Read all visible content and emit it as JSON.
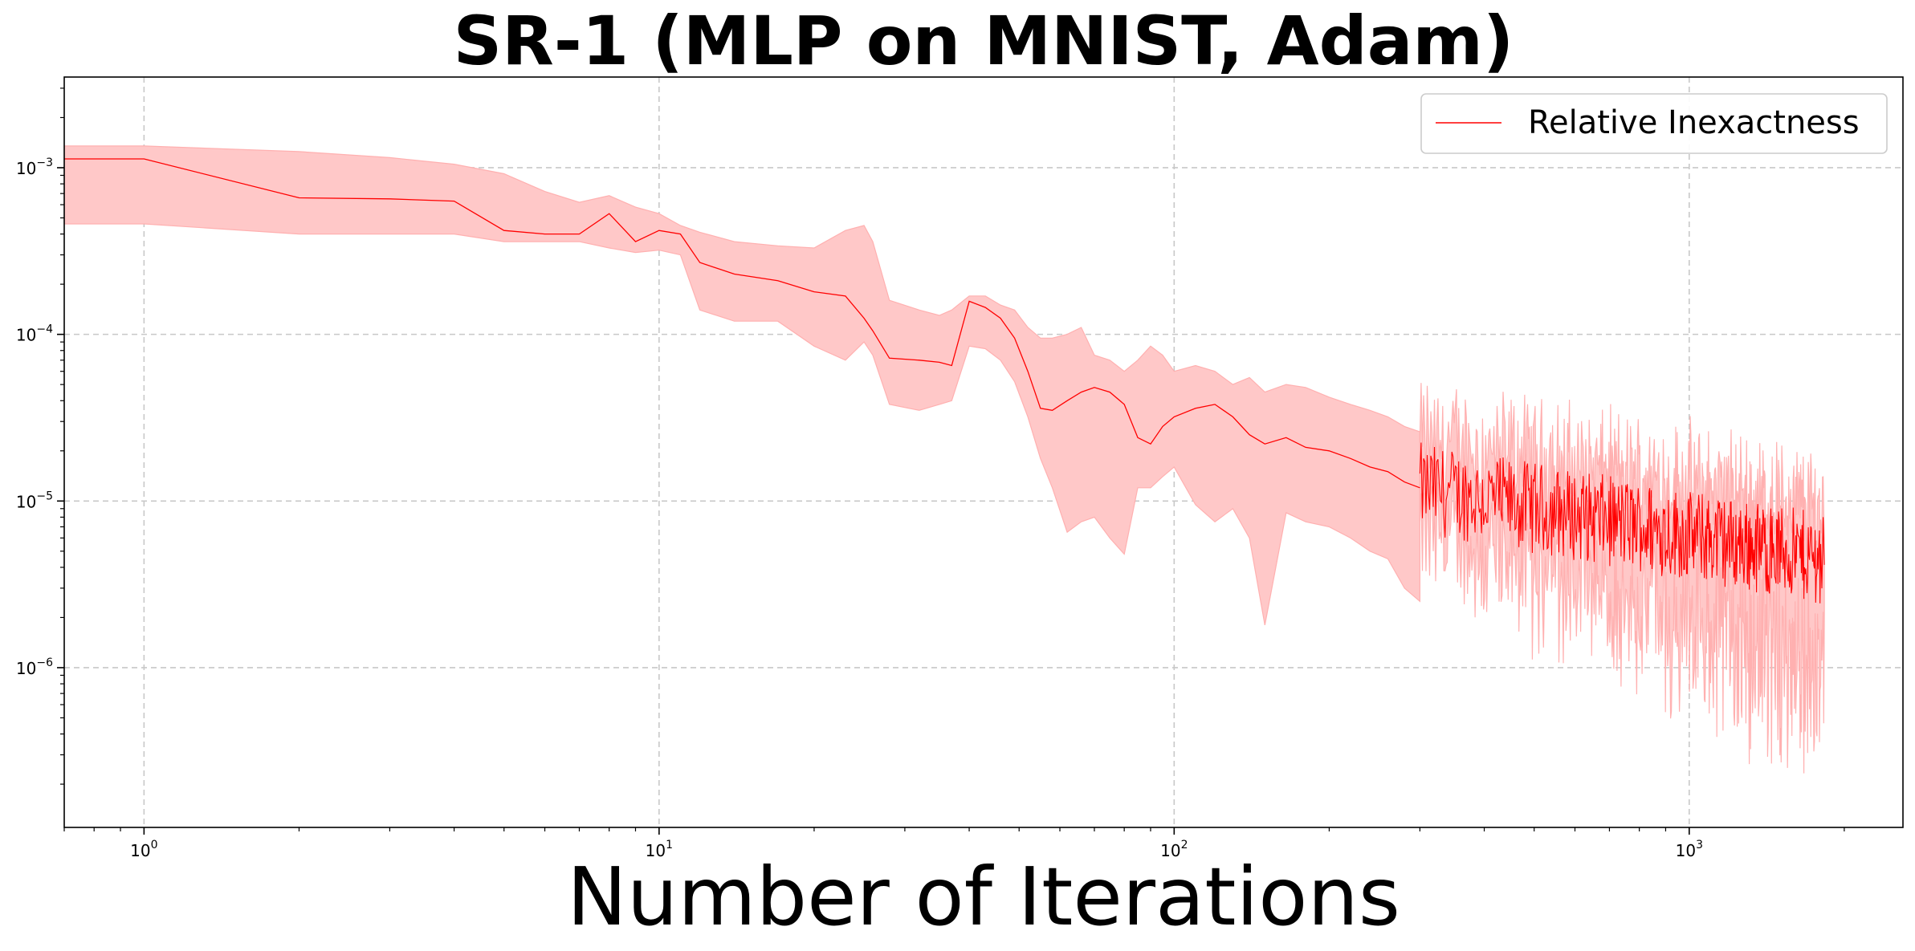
{
  "chart_data": {
    "type": "line",
    "title": "SR-1 (MLP on MNIST, Adam)",
    "xlabel": "Number of Iterations",
    "ylabel": "",
    "x_scale": "log",
    "y_scale": "log",
    "xlim": [
      0.7,
      2600
    ],
    "ylim": [
      1.1e-07,
      0.0035
    ],
    "grid": true,
    "legend_position": "top-right",
    "x_major_ticks": [
      {
        "value": 1,
        "base": "10",
        "exp": "0"
      },
      {
        "value": 10,
        "base": "10",
        "exp": "1"
      },
      {
        "value": 100,
        "base": "10",
        "exp": "2"
      },
      {
        "value": 1000,
        "base": "10",
        "exp": "3"
      }
    ],
    "y_major_ticks": [
      {
        "value": 0.001,
        "base": "10",
        "exp": "−3"
      },
      {
        "value": 0.0001,
        "base": "10",
        "exp": "−4"
      },
      {
        "value": 1e-05,
        "base": "10",
        "exp": "−5"
      },
      {
        "value": 1e-06,
        "base": "10",
        "exp": "−6"
      }
    ],
    "series": [
      {
        "name": "Relative Inexactness",
        "color": "#ff0000",
        "band_color": "#ffc8c8",
        "band_edge_color": "#ffb0b0",
        "x": [
          0.7,
          1,
          2,
          3,
          4,
          5,
          6,
          7,
          8,
          9,
          10,
          11,
          12,
          14,
          17,
          20,
          23,
          25,
          26,
          28,
          32,
          35,
          37,
          40,
          43,
          46,
          49,
          52,
          55,
          58,
          62,
          66,
          70,
          75,
          80,
          85,
          90,
          95,
          100,
          110,
          120,
          130,
          140,
          150,
          165,
          180,
          200,
          220,
          240,
          260,
          280,
          300
        ],
        "mean": [
          0.00113,
          0.00113,
          0.00066,
          0.00065,
          0.00063,
          0.00042,
          0.0004,
          0.0004,
          0.00053,
          0.00036,
          0.00042,
          0.0004,
          0.00027,
          0.00023,
          0.00021,
          0.00018,
          0.00017,
          0.000125,
          0.000105,
          7.2e-05,
          7e-05,
          6.8e-05,
          6.5e-05,
          0.000158,
          0.000145,
          0.000125,
          9.5e-05,
          6e-05,
          3.6e-05,
          3.5e-05,
          4e-05,
          4.5e-05,
          4.8e-05,
          4.5e-05,
          3.8e-05,
          2.4e-05,
          2.2e-05,
          2.8e-05,
          3.2e-05,
          3.6e-05,
          3.8e-05,
          3.2e-05,
          2.5e-05,
          2.2e-05,
          2.4e-05,
          2.1e-05,
          2e-05,
          1.8e-05,
          1.6e-05,
          1.5e-05,
          1.3e-05,
          1.2e-05
        ],
        "upper": [
          0.00135,
          0.00135,
          0.00125,
          0.00115,
          0.00105,
          0.00092,
          0.00072,
          0.00062,
          0.00068,
          0.00058,
          0.00053,
          0.00045,
          0.00041,
          0.00036,
          0.00034,
          0.00033,
          0.00042,
          0.00045,
          0.00036,
          0.00016,
          0.00014,
          0.00013,
          0.00014,
          0.00017,
          0.00017,
          0.00015,
          0.00014,
          0.00011,
          9.5e-05,
          9.5e-05,
          0.0001,
          0.00011,
          7.5e-05,
          7e-05,
          6e-05,
          7e-05,
          8.5e-05,
          7.5e-05,
          6e-05,
          6.5e-05,
          6e-05,
          5e-05,
          5.5e-05,
          4.5e-05,
          5e-05,
          4.8e-05,
          4.2e-05,
          3.8e-05,
          3.5e-05,
          3.2e-05,
          2.8e-05,
          2.6e-05
        ],
        "lower": [
          0.00046,
          0.00046,
          0.0004,
          0.0004,
          0.0004,
          0.00036,
          0.00036,
          0.00036,
          0.00033,
          0.00031,
          0.00032,
          0.0003,
          0.00014,
          0.00012,
          0.00012,
          8.5e-05,
          7e-05,
          9e-05,
          7.5e-05,
          3.8e-05,
          3.5e-05,
          3.8e-05,
          4e-05,
          8.5e-05,
          8.2e-05,
          7e-05,
          5.2e-05,
          3.2e-05,
          1.8e-05,
          1.2e-05,
          6.5e-06,
          7.5e-06,
          8e-06,
          6e-06,
          4.8e-06,
          1.2e-05,
          1.2e-05,
          1.4e-05,
          1.6e-05,
          9.5e-06,
          7.5e-06,
          9e-06,
          6e-06,
          1.8e-06,
          8.5e-06,
          7.5e-06,
          7e-06,
          6e-06,
          5e-06,
          4.5e-06,
          3e-06,
          2.5e-06
        ]
      }
    ]
  }
}
